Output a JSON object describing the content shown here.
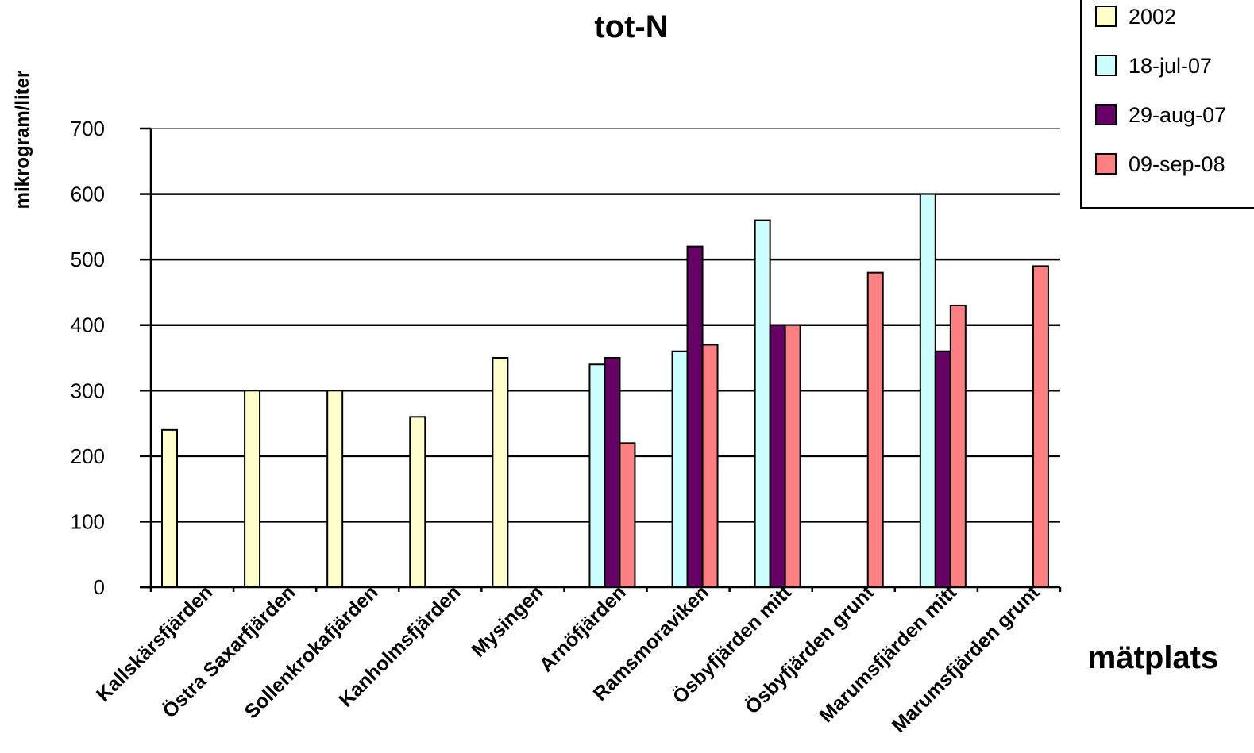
{
  "chart_data": {
    "type": "bar",
    "title": "tot-N",
    "xlabel": "mätplats",
    "ylabel": "mikrogram/liter",
    "ylim": [
      0,
      700
    ],
    "yticks": [
      0,
      100,
      200,
      300,
      400,
      500,
      600,
      700
    ],
    "grid": true,
    "legend_position": "top-right",
    "categories": [
      "Kallskärsfjärden",
      "Östra Saxarfjärden",
      "Sollenkrokafjärden",
      "Kanholmsfjärden",
      "Mysingen",
      "Arnöfjärden",
      "Ramsmoraviken",
      "Ösbyfjärden mitt",
      "Ösbyfjärden grunt",
      "Marumsfjärden mitt",
      "Marumsfjärden grunt"
    ],
    "series": [
      {
        "name": "2002",
        "color": "#FFFFCC",
        "values": [
          240,
          300,
          300,
          260,
          350,
          null,
          null,
          null,
          null,
          null,
          null
        ]
      },
      {
        "name": "18-jul-07",
        "color": "#CCFFFF",
        "values": [
          null,
          null,
          null,
          null,
          null,
          340,
          360,
          560,
          null,
          600,
          null
        ]
      },
      {
        "name": "29-aug-07",
        "color": "#660066",
        "values": [
          null,
          null,
          null,
          null,
          null,
          350,
          520,
          400,
          null,
          360,
          null
        ]
      },
      {
        "name": "09-sep-08",
        "color": "#FF8080",
        "values": [
          null,
          null,
          null,
          null,
          null,
          220,
          370,
          400,
          480,
          430,
          490
        ]
      }
    ]
  }
}
